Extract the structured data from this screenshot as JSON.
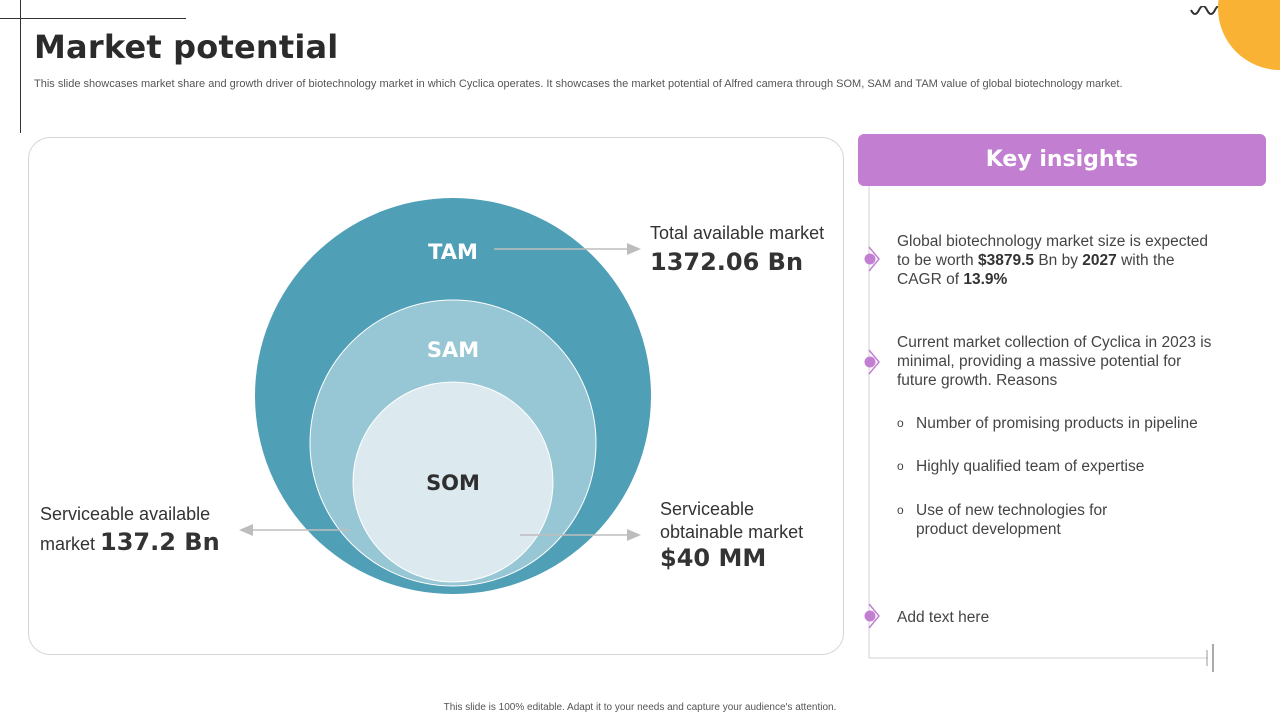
{
  "title": "Market potential",
  "subtitle": "This slide showcases market share and growth driver of biotechnology market in which Cyclica operates. It showcases the market potential of Alfred camera through SOM, SAM  and TAM  value of global biotechnology market.",
  "diagram": {
    "circles": [
      {
        "label": "TAM",
        "color": "#4f9fb6"
      },
      {
        "label": "SAM",
        "color": "#97c6d4"
      },
      {
        "label": "SOM",
        "color": "#dceaf0"
      }
    ],
    "tam": {
      "name": "Total available market",
      "value": "1372.06 Bn"
    },
    "sam": {
      "line1": "Serviceable available",
      "line2_prefix": "market ",
      "value": "137.2 Bn"
    },
    "som": {
      "line1": "Serviceable",
      "line2": "obtainable market",
      "value": "$40 MM"
    }
  },
  "insights": {
    "header": "Key insights",
    "header_color": "#c27fd1",
    "item1": {
      "part1": "Global biotechnology market size is expected to be worth ",
      "amount": "$3879.5",
      "part2": " Bn by ",
      "year": "2027",
      "part3": " with the CAGR of ",
      "cagr": "13.9%"
    },
    "item2": "Current market collection of Cyclica in 2023 is minimal, providing a massive potential for future growth. Reasons",
    "sub_items": [
      "Number of promising products in pipeline",
      "Highly qualified team of expertise",
      "Use of new technologies for",
      "product development"
    ],
    "bullet": "o",
    "item3": "Add text here"
  },
  "footer": "This slide is 100% editable.  Adapt it to your needs and capture your audience's attention.",
  "accent_orange": "#f9b233"
}
